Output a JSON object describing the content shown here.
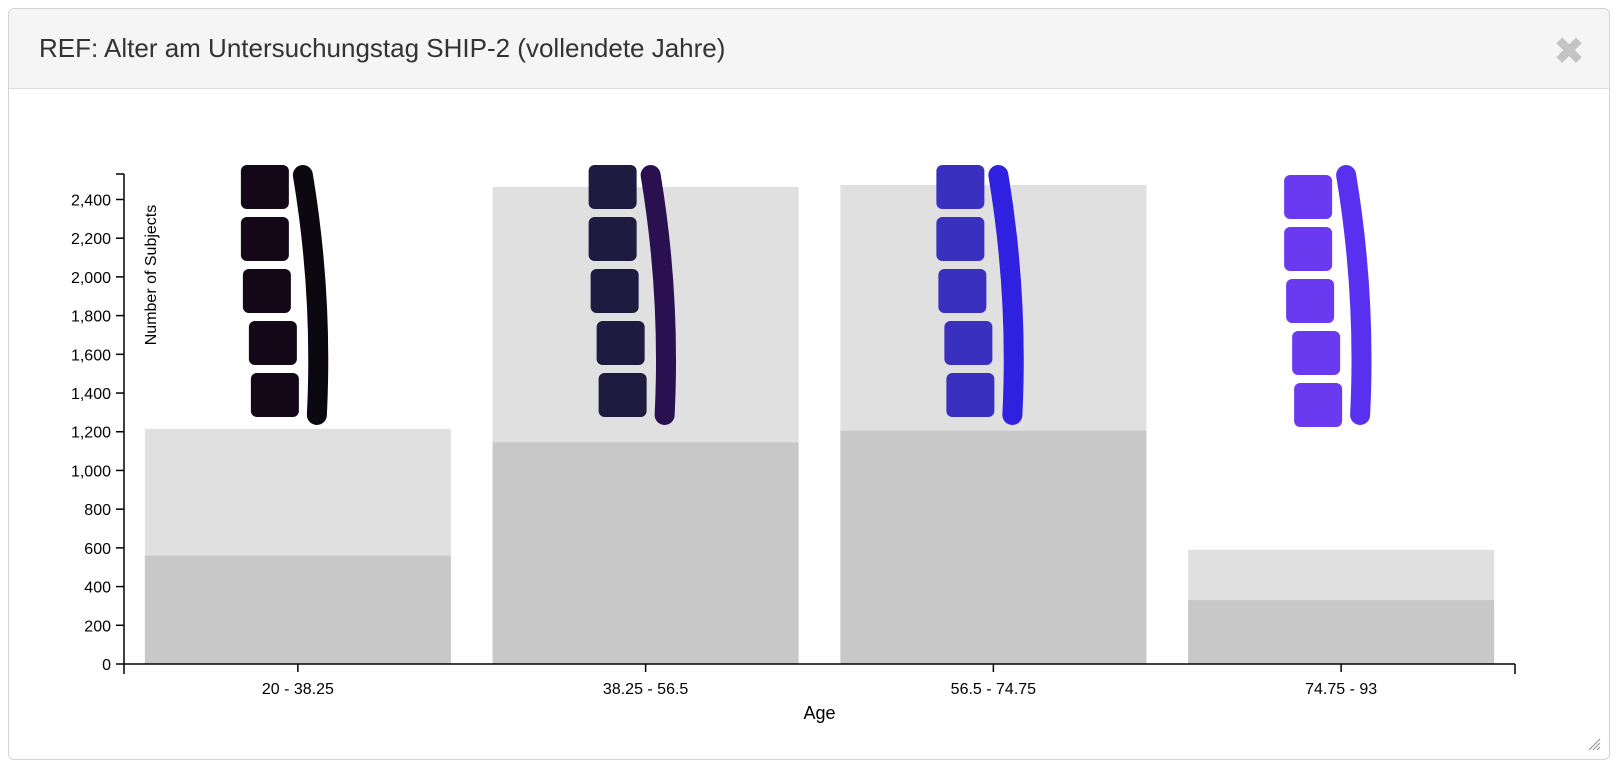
{
  "dialog": {
    "title": "REF: Alter am Untersuchungstag SHIP-2 (vollendete Jahre)",
    "close_symbol": "✖"
  },
  "chart_data": {
    "type": "bar",
    "title": "",
    "xlabel": "Age",
    "ylabel": "Number of Subjects",
    "categories": [
      "20 - 38.25",
      "38.25 - 56.5",
      "56.5 - 74.75",
      "74.75 - 93"
    ],
    "series": [
      {
        "values": [
          1215,
          2465,
          2475,
          590
        ]
      },
      {
        "values": [
          560,
          1145,
          1205,
          330
        ]
      }
    ],
    "ylim": [
      0,
      2480
    ],
    "yticks": [
      0,
      200,
      400,
      600,
      800,
      1000,
      1200,
      1400,
      1600,
      1800,
      2000,
      2200,
      2400
    ],
    "ytick_labels": [
      "0",
      "200",
      "400",
      "600",
      "800",
      "1,000",
      "1,200",
      "1,400",
      "1,600",
      "1,800",
      "2,000",
      "2,200",
      "2,400"
    ],
    "grid": false,
    "colors": {
      "total": "#e0e0e0",
      "subset": "#c8c8c8",
      "axis": "#000000"
    },
    "spine_icons": [
      {
        "name": "spine-icon-1",
        "vertebra_color": "#140818",
        "disc_color": "#0c0810"
      },
      {
        "name": "spine-icon-2",
        "vertebra_color": "#1e1a40",
        "disc_color": "#2a1050"
      },
      {
        "name": "spine-icon-3",
        "vertebra_color": "#3a30c0",
        "disc_color": "#3020e0"
      },
      {
        "name": "spine-icon-4",
        "vertebra_color": "#6a3af0",
        "disc_color": "#5a30f0"
      }
    ]
  }
}
